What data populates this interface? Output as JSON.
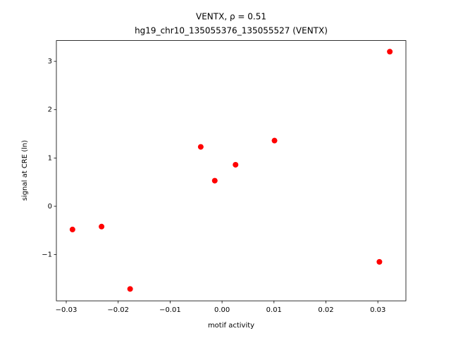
{
  "chart_data": {
    "type": "scatter",
    "title": [
      "VENTX, ρ = 0.51",
      "hg19_chr10_135055376_135055527 (VENTX)"
    ],
    "xlabel": "motif activity",
    "ylabel": "signal at CRE (ln)",
    "x": [
      -0.0288,
      -0.0232,
      -0.0177,
      -0.0041,
      -0.0014,
      0.0026,
      0.0101,
      0.0303,
      0.0323
    ],
    "values": [
      -0.48,
      -0.42,
      -1.71,
      1.23,
      0.53,
      0.86,
      1.36,
      -1.15,
      3.2
    ],
    "color": "#ff0000",
    "xlim": [
      -0.0319,
      0.0354
    ],
    "ylim": [
      -1.956,
      3.43
    ],
    "xticks": [
      {
        "value": -0.03,
        "label": "−0.03"
      },
      {
        "value": -0.02,
        "label": "−0.02"
      },
      {
        "value": -0.01,
        "label": "−0.01"
      },
      {
        "value": 0,
        "label": "0.00"
      },
      0.01,
      0.02,
      0.03
    ],
    "yticks": [
      {
        "value": -1,
        "label": "−1"
      },
      0,
      1,
      2,
      3
    ]
  }
}
